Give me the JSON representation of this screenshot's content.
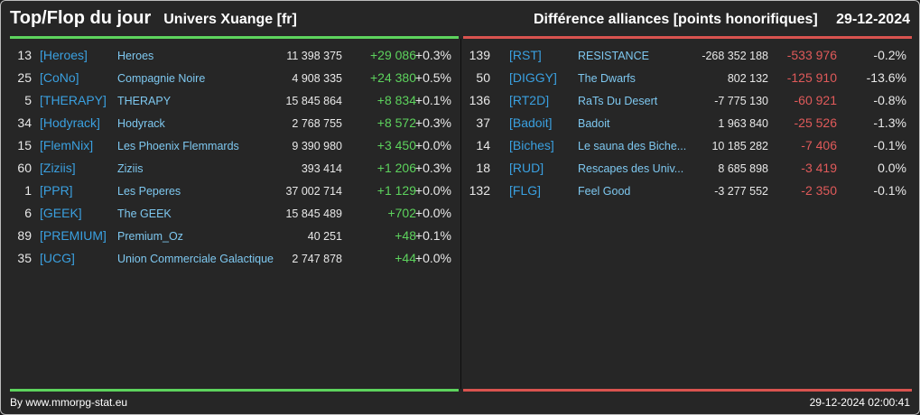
{
  "header": {
    "title": "Top/Flop du jour",
    "subtitle": "Univers Xuange [fr]",
    "metric": "Différence alliances [points honorifiques]",
    "date": "29-12-2024"
  },
  "colors": {
    "positive": "#5dd35d",
    "negative": "#e05a5a",
    "tag": "#3aa0e0",
    "name": "#7ec8f0"
  },
  "top": [
    {
      "rank": "13",
      "tag": "[Heroes]",
      "name": "Heroes",
      "points": "11 398 375",
      "diff": "+29 086",
      "pct": "+0.3%"
    },
    {
      "rank": "25",
      "tag": "[CoNo]",
      "name": "Compagnie Noire",
      "points": "4 908 335",
      "diff": "+24 380",
      "pct": "+0.5%"
    },
    {
      "rank": "5",
      "tag": "[THERAPY]",
      "name": "THERAPY",
      "points": "15 845 864",
      "diff": "+8 834",
      "pct": "+0.1%"
    },
    {
      "rank": "34",
      "tag": "[Hodyrack]",
      "name": "Hodyrack",
      "points": "2 768 755",
      "diff": "+8 572",
      "pct": "+0.3%"
    },
    {
      "rank": "15",
      "tag": "[FlemNix]",
      "name": "Les Phoenix Flemmards",
      "points": "9 390 980",
      "diff": "+3 450",
      "pct": "+0.0%"
    },
    {
      "rank": "60",
      "tag": "[Ziziis]",
      "name": "Ziziis",
      "points": "393 414",
      "diff": "+1 206",
      "pct": "+0.3%"
    },
    {
      "rank": "1",
      "tag": "[PPR]",
      "name": "Les Peperes",
      "points": "37 002 714",
      "diff": "+1 129",
      "pct": "+0.0%"
    },
    {
      "rank": "6",
      "tag": "[GEEK]",
      "name": "The GEEK",
      "points": "15 845 489",
      "diff": "+702",
      "pct": "+0.0%"
    },
    {
      "rank": "89",
      "tag": "[PREMIUM]",
      "name": "Premium_Oz",
      "points": "40 251",
      "diff": "+48",
      "pct": "+0.1%"
    },
    {
      "rank": "35",
      "tag": "[UCG]",
      "name": "Union Commerciale Galactique",
      "points": "2 747 878",
      "diff": "+44",
      "pct": "+0.0%"
    }
  ],
  "flop": [
    {
      "rank": "139",
      "tag": "[RST]",
      "name": "RESISTANCE",
      "points": "-268 352 188",
      "diff": "-533 976",
      "pct": "-0.2%"
    },
    {
      "rank": "50",
      "tag": "[DIGGY]",
      "name": "The Dwarfs",
      "points": "802 132",
      "diff": "-125 910",
      "pct": "-13.6%"
    },
    {
      "rank": "136",
      "tag": "[RT2D]",
      "name": "RaTs Du Desert",
      "points": "-7 775 130",
      "diff": "-60 921",
      "pct": "-0.8%"
    },
    {
      "rank": "37",
      "tag": "[Badoit]",
      "name": "Badoit",
      "points": "1 963 840",
      "diff": "-25 526",
      "pct": "-1.3%"
    },
    {
      "rank": "14",
      "tag": "[Biches]",
      "name": "Le sauna des Biche...",
      "points": "10 185 282",
      "diff": "-7 406",
      "pct": "-0.1%"
    },
    {
      "rank": "18",
      "tag": "[RUD]",
      "name": "Rescapes des Univ...",
      "points": "8 685 898",
      "diff": "-3 419",
      "pct": "0.0%"
    },
    {
      "rank": "132",
      "tag": "[FLG]",
      "name": "Feel Good",
      "points": "-3 277 552",
      "diff": "-2 350",
      "pct": "-0.1%"
    }
  ],
  "footer": {
    "credit": "By www.mmorpg-stat.eu",
    "timestamp": "29-12-2024 02:00:41"
  }
}
